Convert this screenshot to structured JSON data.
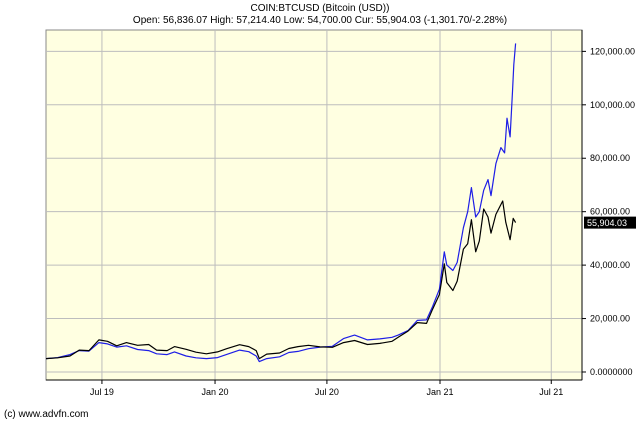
{
  "header": {
    "symbol_line": "COIN:BTCUSD (Bitcoin (USD))",
    "ohlc_line": "Open: 56,836.07 High: 57,214.40 Low: 54,700.00 Cur: 55,904.03 (-1,301.70/-2.28%)"
  },
  "footer": {
    "credit": "(c) www.advfn.com"
  },
  "colors": {
    "plot_background": "#FFFFE1",
    "grid": "#BDBDBD",
    "price_line": "#000000",
    "comparison_line": "#1E1EE6",
    "current_badge": "#000000"
  },
  "chart_data": {
    "type": "line",
    "title": "COIN:BTCUSD (Bitcoin (USD))",
    "subtitle": "Open: 56,836.07 High: 57,214.40 Low: 54,700.00 Cur: 55,904.03 (-1,301.70/-2.28%)",
    "xlabel": "",
    "ylabel": "",
    "x_range": [
      "2019-04-01",
      "2021-08-20"
    ],
    "ylim": [
      -3000,
      128000
    ],
    "grid": true,
    "y_axis_side": "right",
    "x_ticks": [
      {
        "date": "2019-07-01",
        "label": "Jul 19"
      },
      {
        "date": "2020-01-01",
        "label": "Jan 20"
      },
      {
        "date": "2020-07-01",
        "label": "Jul 20"
      },
      {
        "date": "2021-01-01",
        "label": "Jan 21"
      },
      {
        "date": "2021-07-01",
        "label": "Jul 21"
      }
    ],
    "y_ticks": [
      {
        "value": 0,
        "label": "0.0000000"
      },
      {
        "value": 20000,
        "label": "20,000.00"
      },
      {
        "value": 40000,
        "label": "40,000.00"
      },
      {
        "value": 60000,
        "label": "60,000.00"
      },
      {
        "value": 80000,
        "label": "80,000.00"
      },
      {
        "value": 100000,
        "label": "100,000.00"
      },
      {
        "value": 120000,
        "label": "120,000.00"
      }
    ],
    "current_value": 55904.03,
    "current_label": "55,904.03",
    "series": [
      {
        "points": [
          [
            "2019-04-01",
            5000
          ],
          [
            "2019-04-20",
            5300
          ],
          [
            "2019-05-10",
            6000
          ],
          [
            "2019-05-25",
            8200
          ],
          [
            "2019-06-10",
            8000
          ],
          [
            "2019-06-26",
            12000
          ],
          [
            "2019-07-10",
            11500
          ],
          [
            "2019-07-25",
            9800
          ],
          [
            "2019-08-10",
            11000
          ],
          [
            "2019-08-28",
            10000
          ],
          [
            "2019-09-15",
            10300
          ],
          [
            "2019-09-28",
            8200
          ],
          [
            "2019-10-15",
            8000
          ],
          [
            "2019-10-27",
            9500
          ],
          [
            "2019-11-15",
            8500
          ],
          [
            "2019-12-01",
            7400
          ],
          [
            "2019-12-18",
            6800
          ],
          [
            "2020-01-05",
            7500
          ],
          [
            "2020-01-20",
            8700
          ],
          [
            "2020-02-10",
            10200
          ],
          [
            "2020-02-25",
            9500
          ],
          [
            "2020-03-08",
            8000
          ],
          [
            "2020-03-13",
            5000
          ],
          [
            "2020-03-25",
            6700
          ],
          [
            "2020-04-15",
            7100
          ],
          [
            "2020-04-30",
            8800
          ],
          [
            "2020-05-15",
            9500
          ],
          [
            "2020-06-01",
            10000
          ],
          [
            "2020-06-20",
            9400
          ],
          [
            "2020-07-10",
            9250
          ],
          [
            "2020-07-28",
            11000
          ],
          [
            "2020-08-15",
            11800
          ],
          [
            "2020-09-05",
            10300
          ],
          [
            "2020-09-25",
            10700
          ],
          [
            "2020-10-15",
            11500
          ],
          [
            "2020-10-25",
            13000
          ],
          [
            "2020-11-10",
            15300
          ],
          [
            "2020-11-25",
            18500
          ],
          [
            "2020-12-10",
            18200
          ],
          [
            "2020-12-20",
            23500
          ],
          [
            "2020-12-31",
            29000
          ],
          [
            "2021-01-08",
            40500
          ],
          [
            "2021-01-12",
            33500
          ],
          [
            "2021-01-22",
            30500
          ],
          [
            "2021-01-29",
            34000
          ],
          [
            "2021-02-08",
            46000
          ],
          [
            "2021-02-15",
            48000
          ],
          [
            "2021-02-21",
            57000
          ],
          [
            "2021-02-28",
            45000
          ],
          [
            "2021-03-06",
            49000
          ],
          [
            "2021-03-13",
            61000
          ],
          [
            "2021-03-20",
            58000
          ],
          [
            "2021-03-25",
            52000
          ],
          [
            "2021-04-02",
            59000
          ],
          [
            "2021-04-13",
            64000
          ],
          [
            "2021-04-18",
            56000
          ],
          [
            "2021-04-25",
            49500
          ],
          [
            "2021-04-30",
            57500
          ],
          [
            "2021-05-04",
            55904
          ]
        ]
      },
      {
        "points": [
          [
            "2019-04-01",
            5000
          ],
          [
            "2019-04-20",
            5400
          ],
          [
            "2019-05-10",
            6500
          ],
          [
            "2019-05-25",
            8000
          ],
          [
            "2019-06-10",
            7800
          ],
          [
            "2019-06-26",
            11000
          ],
          [
            "2019-07-10",
            10500
          ],
          [
            "2019-07-25",
            9300
          ],
          [
            "2019-08-10",
            9800
          ],
          [
            "2019-08-28",
            8400
          ],
          [
            "2019-09-15",
            8000
          ],
          [
            "2019-09-28",
            6800
          ],
          [
            "2019-10-15",
            6500
          ],
          [
            "2019-10-27",
            7500
          ],
          [
            "2019-11-15",
            6000
          ],
          [
            "2019-12-01",
            5300
          ],
          [
            "2019-12-18",
            5000
          ],
          [
            "2020-01-05",
            5400
          ],
          [
            "2020-01-20",
            6600
          ],
          [
            "2020-02-10",
            8200
          ],
          [
            "2020-02-25",
            7600
          ],
          [
            "2020-03-08",
            6000
          ],
          [
            "2020-03-13",
            3900
          ],
          [
            "2020-03-25",
            5000
          ],
          [
            "2020-04-15",
            5700
          ],
          [
            "2020-04-30",
            7300
          ],
          [
            "2020-05-15",
            7700
          ],
          [
            "2020-06-01",
            8700
          ],
          [
            "2020-06-20",
            9300
          ],
          [
            "2020-07-10",
            9600
          ],
          [
            "2020-07-28",
            12500
          ],
          [
            "2020-08-15",
            13800
          ],
          [
            "2020-09-05",
            12000
          ],
          [
            "2020-09-25",
            12400
          ],
          [
            "2020-10-15",
            13000
          ],
          [
            "2020-10-25",
            13800
          ],
          [
            "2020-11-10",
            15500
          ],
          [
            "2020-11-25",
            19300
          ],
          [
            "2020-12-10",
            19500
          ],
          [
            "2020-12-20",
            24500
          ],
          [
            "2020-12-31",
            31000
          ],
          [
            "2021-01-08",
            45000
          ],
          [
            "2021-01-12",
            40000
          ],
          [
            "2021-01-22",
            38000
          ],
          [
            "2021-01-29",
            41000
          ],
          [
            "2021-02-08",
            54000
          ],
          [
            "2021-02-15",
            60000
          ],
          [
            "2021-02-21",
            69000
          ],
          [
            "2021-02-28",
            58000
          ],
          [
            "2021-03-06",
            60000
          ],
          [
            "2021-03-13",
            68000
          ],
          [
            "2021-03-20",
            72000
          ],
          [
            "2021-03-25",
            66000
          ],
          [
            "2021-04-02",
            78000
          ],
          [
            "2021-04-10",
            84000
          ],
          [
            "2021-04-16",
            82000
          ],
          [
            "2021-04-20",
            95000
          ],
          [
            "2021-04-25",
            88000
          ],
          [
            "2021-04-29",
            105000
          ],
          [
            "2021-05-01",
            115000
          ],
          [
            "2021-05-04",
            123000
          ]
        ]
      }
    ]
  }
}
